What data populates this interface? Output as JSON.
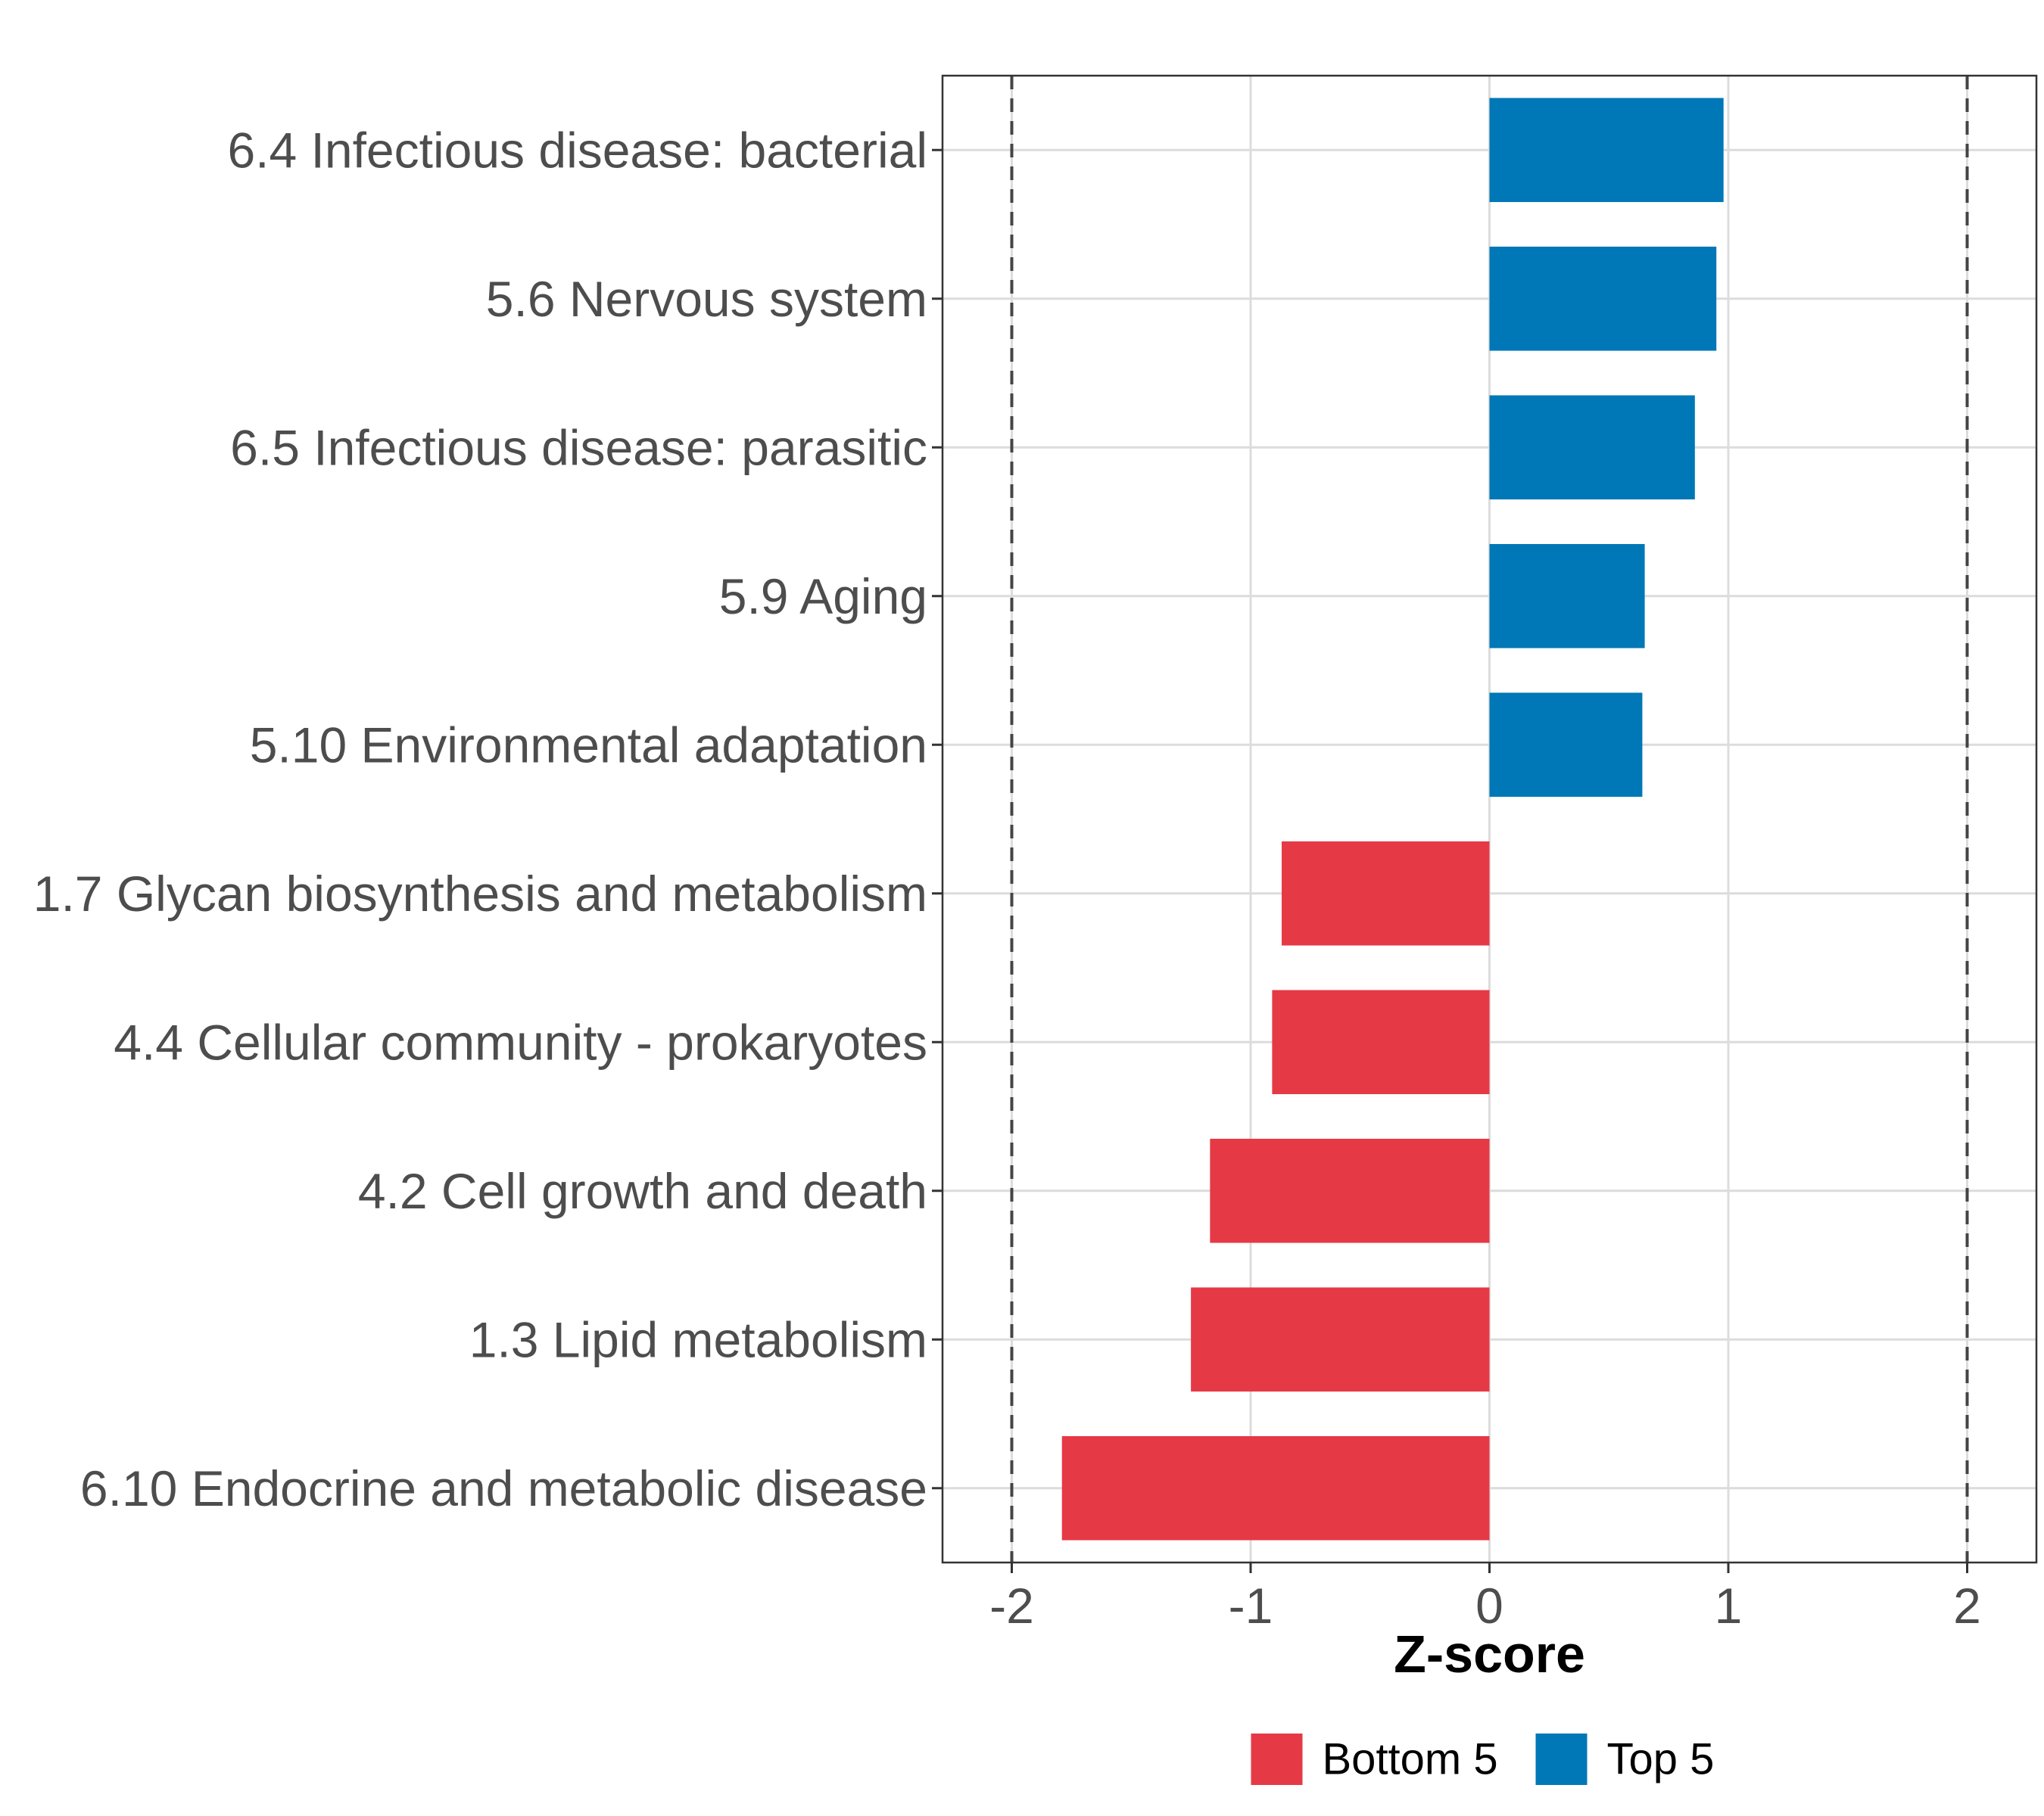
{
  "chart_data": {
    "type": "bar",
    "orientation": "horizontal",
    "categories": [
      "6.4 Infectious disease: bacterial",
      "5.6 Nervous system",
      "6.5 Infectious disease: parasitic",
      "5.9 Aging",
      "5.10 Environmental adaptation",
      "1.7 Glycan biosynthesis and metabolism",
      "4.4 Cellular community - prokaryotes",
      "4.2 Cell growth and death",
      "1.3 Lipid metabolism",
      "6.10 Endocrine and metabolic disease"
    ],
    "values": [
      0.98,
      0.95,
      0.86,
      0.65,
      0.64,
      -0.87,
      -0.91,
      -1.17,
      -1.25,
      -1.79
    ],
    "groups": [
      "Top 5",
      "Top 5",
      "Top 5",
      "Top 5",
      "Top 5",
      "Bottom 5",
      "Bottom 5",
      "Bottom 5",
      "Bottom 5",
      "Bottom 5"
    ],
    "xlabel": "Z-score",
    "ylabel": "",
    "xlim": [
      -2.29,
      2.29
    ],
    "xticks": [
      -2,
      -1,
      0,
      1,
      2
    ],
    "xtick_labels": [
      "-2",
      "-1",
      "0",
      "1",
      "2"
    ],
    "reference_lines": [
      -2,
      2
    ],
    "grid": true,
    "legend": {
      "position": "bottom",
      "entries": [
        {
          "label": "Bottom 5",
          "color": "#e63946"
        },
        {
          "label": "Top 5",
          "color": "#0077b6"
        }
      ]
    },
    "colors": {
      "Bottom 5": "#e63946",
      "Top 5": "#0077b6"
    }
  }
}
